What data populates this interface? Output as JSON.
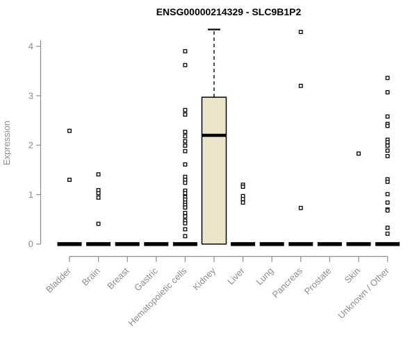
{
  "title": "ENSG00000214329 - SLC9B1P2",
  "chart_data": {
    "type": "boxplot",
    "title": "ENSG00000214329 - SLC9B1P2",
    "xlabel": "",
    "ylabel": "Expression",
    "ylim": [
      0,
      4.4
    ],
    "yticks": [
      0,
      1,
      2,
      3,
      4
    ],
    "grid": false,
    "legend_position": "none",
    "categories": [
      "Bladder",
      "Brain",
      "Breast",
      "Gastric",
      "Hematopoietic cells",
      "Kidney",
      "Liver",
      "Lung",
      "Pancreas",
      "Prostate",
      "Skin",
      "Unknown / Other"
    ],
    "series": [
      {
        "category": "Bladder",
        "whisker_low": 0,
        "q1": 0,
        "median": 0,
        "q3": 0,
        "whisker_high": 0,
        "outliers": [
          2.29,
          1.3
        ]
      },
      {
        "category": "Brain",
        "whisker_low": 0,
        "q1": 0,
        "median": 0,
        "q3": 0,
        "whisker_high": 0,
        "outliers": [
          1.41,
          1.09,
          1.03,
          0.94,
          0.41
        ]
      },
      {
        "category": "Breast",
        "whisker_low": 0,
        "q1": 0,
        "median": 0,
        "q3": 0,
        "whisker_high": 0,
        "outliers": []
      },
      {
        "category": "Gastric",
        "whisker_low": 0,
        "q1": 0,
        "median": 0,
        "q3": 0,
        "whisker_high": 0,
        "outliers": []
      },
      {
        "category": "Hematopoietic cells",
        "whisker_low": 0,
        "q1": 0,
        "median": 0,
        "q3": 0,
        "whisker_high": 0,
        "outliers": [
          3.9,
          3.62,
          2.71,
          2.62,
          2.27,
          2.18,
          2.08,
          1.99,
          1.88,
          1.61,
          1.36,
          1.3,
          1.24,
          1.08,
          1.03,
          0.95,
          0.9,
          0.84,
          0.79,
          0.74,
          0.63,
          0.56,
          0.47,
          0.42,
          0.3,
          0.16
        ]
      },
      {
        "category": "Kidney",
        "whisker_low": 0,
        "q1": 0,
        "median": 2.2,
        "q3": 2.97,
        "whisker_high": 4.34,
        "outliers": []
      },
      {
        "category": "Liver",
        "whisker_low": 0,
        "q1": 0,
        "median": 0,
        "q3": 0,
        "whisker_high": 0,
        "outliers": [
          1.2,
          1.16,
          0.97,
          0.91,
          0.84
        ]
      },
      {
        "category": "Lung",
        "whisker_low": 0,
        "q1": 0,
        "median": 0,
        "q3": 0,
        "whisker_high": 0,
        "outliers": []
      },
      {
        "category": "Pancreas",
        "whisker_low": 0,
        "q1": 0,
        "median": 0,
        "q3": 0,
        "whisker_high": 0,
        "outliers": [
          4.29,
          3.2,
          0.73
        ]
      },
      {
        "category": "Prostate",
        "whisker_low": 0,
        "q1": 0,
        "median": 0,
        "q3": 0,
        "whisker_high": 0,
        "outliers": []
      },
      {
        "category": "Skin",
        "whisker_low": 0,
        "q1": 0,
        "median": 0,
        "q3": 0,
        "whisker_high": 0,
        "outliers": [
          1.83
        ]
      },
      {
        "category": "Unknown / Other",
        "whisker_low": 0,
        "q1": 0,
        "median": 0,
        "q3": 0,
        "whisker_high": 0,
        "outliers": [
          3.36,
          3.07,
          2.58,
          2.43,
          2.39,
          2.11,
          2.06,
          1.99,
          1.89,
          1.78,
          1.31,
          1.26,
          1.01,
          0.84,
          0.7,
          0.68,
          0.33,
          0.21
        ]
      }
    ],
    "colors": {
      "box_fill": "#ebe5ca",
      "box_stroke": "#000000",
      "median": "#000000",
      "outlier_stroke": "#000000",
      "outlier_fill": "#ffffff",
      "axis": "#8c8c8c",
      "title": "#000000",
      "background": "#ffffff"
    }
  }
}
